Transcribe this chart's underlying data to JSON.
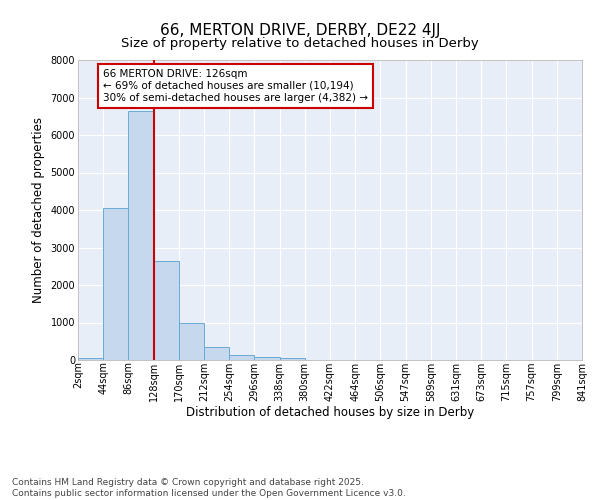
{
  "title1": "66, MERTON DRIVE, DERBY, DE22 4JJ",
  "title2": "Size of property relative to detached houses in Derby",
  "xlabel": "Distribution of detached houses by size in Derby",
  "ylabel": "Number of detached properties",
  "bar_values": [
    50,
    4050,
    6630,
    2650,
    1000,
    340,
    130,
    80,
    50,
    0,
    0,
    0,
    0,
    0,
    0,
    0,
    0,
    0,
    0,
    0
  ],
  "bar_labels": [
    "2sqm",
    "44sqm",
    "86sqm",
    "128sqm",
    "170sqm",
    "212sqm",
    "254sqm",
    "296sqm",
    "338sqm",
    "380sqm",
    "422sqm",
    "464sqm",
    "506sqm",
    "547sqm",
    "589sqm",
    "631sqm",
    "673sqm",
    "715sqm",
    "757sqm",
    "799sqm",
    "841sqm"
  ],
  "bar_color": "#c5d8ed",
  "bar_edgecolor": "#6aaad4",
  "vline_x": 2,
  "vline_color": "#cc0000",
  "annotation_text": "66 MERTON DRIVE: 126sqm\n← 69% of detached houses are smaller (10,194)\n30% of semi-detached houses are larger (4,382) →",
  "annotation_box_color": "#cc0000",
  "annotation_bg": "white",
  "ylim": [
    0,
    8000
  ],
  "yticks": [
    0,
    1000,
    2000,
    3000,
    4000,
    5000,
    6000,
    7000,
    8000
  ],
  "fig_bg": "white",
  "plot_bg": "#e8eef8",
  "grid_color": "white",
  "footer": "Contains HM Land Registry data © Crown copyright and database right 2025.\nContains public sector information licensed under the Open Government Licence v3.0.",
  "title_fontsize": 11,
  "subtitle_fontsize": 9.5,
  "tick_fontsize": 7,
  "ylabel_fontsize": 8.5,
  "xlabel_fontsize": 8.5,
  "annotation_fontsize": 7.5,
  "footer_fontsize": 6.5
}
